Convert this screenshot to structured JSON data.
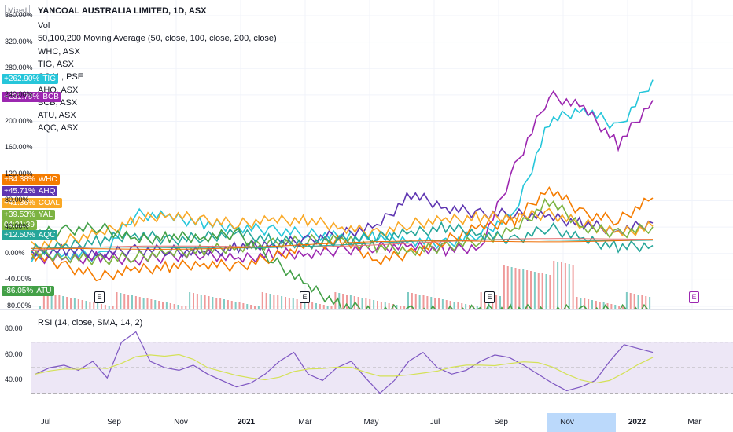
{
  "header": {
    "scale_mode": "Mixed",
    "title": "YANCOAL AUSTRALIA LIMITED, 1D, ASX",
    "indicators": [
      "Vol",
      "50,100,200 Moving Average (50, close, 100, close, 200, close)",
      "WHC, ASX",
      "TIG, ASX",
      "COAL, PSE",
      "AHQ, ASX",
      "BCB, ASX",
      "ATU, ASX",
      "AQC, ASX"
    ]
  },
  "rsi": {
    "title": "RSI (14, close, SMA, 14, 2)"
  },
  "price_badges": [
    {
      "value": "+262.90%",
      "symbol": "TIG",
      "color": "#26c6da"
    },
    {
      "value": "+231.79%",
      "symbol": "BCB",
      "color": "#9c27b0"
    },
    {
      "value": "+84.38%",
      "symbol": "WHC",
      "color": "#f57c00"
    },
    {
      "value": "+45.71%",
      "symbol": "AHQ",
      "color": "#5e35b1"
    },
    {
      "value": "+41.36%",
      "symbol": "COAL",
      "color": "#f9a825"
    },
    {
      "value": "+39.53%",
      "symbol": "YAL",
      "color": "#7cb342"
    },
    {
      "value": "04:21:39",
      "symbol": "",
      "color": "#7cb342"
    },
    {
      "value": "+12.50%",
      "symbol": "AQC",
      "color": "#26a69a"
    },
    {
      "value": "-86.05%",
      "symbol": "ATU",
      "color": "#43a047"
    }
  ],
  "y_axis_main": [
    "360.00%",
    "320.00%",
    "280.00%",
    "240.00%",
    "200.00%",
    "160.00%",
    "120.00%",
    "80.00%",
    "40.00%",
    "0.00%",
    "-40.00%",
    "-80.00%"
  ],
  "y_axis_rsi": [
    "80.00",
    "60.00",
    "40.00"
  ],
  "x_axis": [
    {
      "label": "Jul",
      "bold": false
    },
    {
      "label": "Sep",
      "bold": false
    },
    {
      "label": "Nov",
      "bold": false
    },
    {
      "label": "2021",
      "bold": true
    },
    {
      "label": "Mar",
      "bold": false
    },
    {
      "label": "May",
      "bold": false
    },
    {
      "label": "Jul",
      "bold": false
    },
    {
      "label": "Sep",
      "bold": false
    },
    {
      "label": "Nov",
      "bold": false
    },
    {
      "label": "2022",
      "bold": true
    },
    {
      "label": "Mar",
      "bold": false
    }
  ],
  "earnings_markers": [
    "E",
    "E",
    "E",
    "E"
  ],
  "chart_data": {
    "type": "line",
    "x": [
      "Jul 2020",
      "Aug 2020",
      "Sep 2020",
      "Oct 2020",
      "Nov 2020",
      "Dec 2020",
      "Jan 2021",
      "Feb 2021",
      "Mar 2021",
      "Apr 2021",
      "May 2021",
      "Jun 2021",
      "Jul 2021",
      "Aug 2021",
      "Sep 2021",
      "Oct 2021",
      "Nov 2021",
      "Dec 2021",
      "Jan 2022"
    ],
    "series": [
      {
        "name": "TIG",
        "color": "#26c6da",
        "values": [
          -5,
          0,
          -5,
          60,
          55,
          45,
          40,
          35,
          30,
          25,
          25,
          20,
          15,
          30,
          60,
          200,
          220,
          190,
          263
        ]
      },
      {
        "name": "BCB",
        "color": "#9c27b0",
        "values": [
          -5,
          -10,
          -5,
          -10,
          -5,
          0,
          -10,
          0,
          0,
          5,
          10,
          10,
          5,
          10,
          130,
          240,
          220,
          165,
          232
        ]
      },
      {
        "name": "WHC",
        "color": "#f57c00",
        "values": [
          0,
          -20,
          -35,
          -25,
          -20,
          -15,
          -20,
          -5,
          10,
          20,
          -10,
          0,
          20,
          40,
          50,
          100,
          60,
          50,
          84
        ]
      },
      {
        "name": "AHQ",
        "color": "#5e35b1",
        "values": [
          0,
          5,
          0,
          5,
          5,
          0,
          10,
          15,
          20,
          30,
          40,
          90,
          70,
          60,
          60,
          55,
          45,
          35,
          46
        ]
      },
      {
        "name": "COAL",
        "color": "#f9a825",
        "values": [
          10,
          20,
          30,
          50,
          60,
          50,
          45,
          50,
          50,
          40,
          30,
          45,
          50,
          55,
          55,
          60,
          45,
          30,
          41
        ]
      },
      {
        "name": "YAL",
        "color": "#7cb342",
        "values": [
          0,
          -5,
          -10,
          -5,
          0,
          5,
          10,
          15,
          20,
          20,
          10,
          5,
          10,
          20,
          35,
          80,
          40,
          30,
          40
        ]
      },
      {
        "name": "AQC",
        "color": "#26a69a",
        "values": [
          5,
          10,
          20,
          30,
          20,
          25,
          30,
          20,
          15,
          20,
          25,
          30,
          40,
          30,
          20,
          40,
          20,
          10,
          12
        ]
      },
      {
        "name": "ATU",
        "color": "#43a047",
        "values": [
          30,
          35,
          40,
          20,
          25,
          25,
          30,
          -10,
          -50,
          -80,
          -85,
          -87,
          -88,
          -86,
          -86,
          -85,
          -87,
          -86,
          -86
        ]
      }
    ],
    "rsi_values": [
      45,
      50,
      52,
      48,
      55,
      42,
      70,
      78,
      55,
      50,
      48,
      52,
      45,
      40,
      35,
      38,
      45,
      55,
      62,
      45,
      40,
      50,
      55,
      42,
      30,
      40,
      55,
      62,
      50,
      45,
      48,
      55,
      60,
      58,
      52,
      45,
      38,
      32,
      35,
      40,
      55,
      68,
      65,
      62
    ],
    "ylim": [
      -80,
      360
    ]
  }
}
